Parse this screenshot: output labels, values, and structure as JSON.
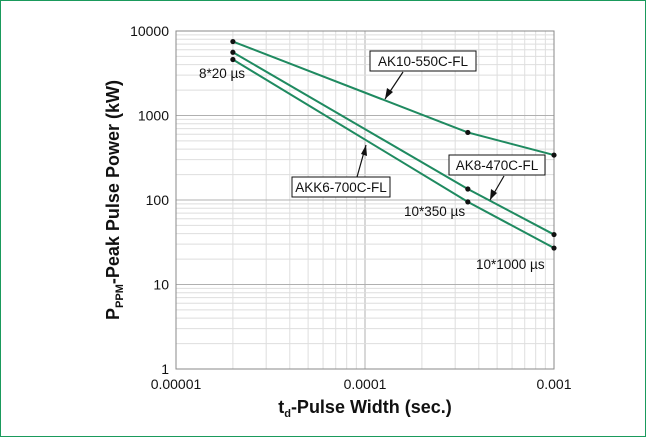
{
  "chart_data": {
    "type": "line",
    "title": "",
    "xlabel": {
      "main": "t",
      "sub": "d",
      "rest": "-Pulse Width (sec.)"
    },
    "ylabel": {
      "main": "P",
      "sub": "PPM",
      "rest": "-Peak Pulse Power (kW)"
    },
    "x_scale": "log",
    "y_scale": "log",
    "xlim": [
      1e-05,
      0.001
    ],
    "ylim": [
      1,
      10000
    ],
    "x_ticks": [
      1e-05,
      0.0001,
      0.001
    ],
    "x_tick_labels": [
      "0.00001",
      "0.0001",
      "0.001"
    ],
    "y_ticks": [
      1,
      10,
      100,
      1000,
      10000
    ],
    "y_tick_labels": [
      "1",
      "10",
      "100",
      "1000",
      "10000"
    ],
    "grid": true,
    "series_color": "#1f8a60",
    "series": [
      {
        "name": "AK10-550C-FL",
        "x": [
          2e-05,
          0.00035,
          0.001
        ],
        "y": [
          7500,
          630,
          340
        ]
      },
      {
        "name": "AK8-470C-FL",
        "x": [
          2e-05,
          0.00035,
          0.001
        ],
        "y": [
          5600,
          135,
          39
        ]
      },
      {
        "name": "AKK6-700C-FL",
        "x": [
          2e-05,
          0.00035,
          0.001
        ],
        "y": [
          4600,
          95,
          27
        ]
      }
    ],
    "annotations": [
      "8*20 µs",
      "10*350 µs",
      "10*1000 µs"
    ]
  }
}
